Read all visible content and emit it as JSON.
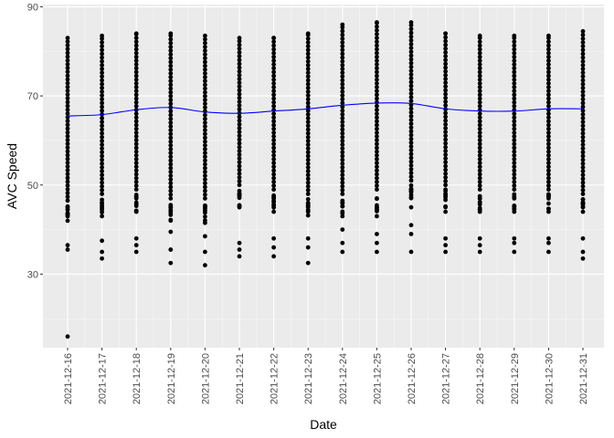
{
  "chart_data": {
    "type": "scatter",
    "title": "",
    "xlabel": "Date",
    "ylabel": "AVC Speed",
    "ylim": [
      13.5,
      90.5
    ],
    "yticks": [
      30,
      50,
      70,
      90
    ],
    "grid": true,
    "legend": "none",
    "categories": [
      "2021-12-16",
      "2021-12-17",
      "2021-12-18",
      "2021-12-19",
      "2021-12-20",
      "2021-12-21",
      "2021-12-22",
      "2021-12-23",
      "2021-12-24",
      "2021-12-25",
      "2021-12-26",
      "2021-12-27",
      "2021-12-28",
      "2021-12-29",
      "2021-12-30",
      "2021-12-31"
    ],
    "point_color": "#000000",
    "points_per_day": [
      {
        "date": "2021-12-16",
        "min": 16,
        "max": 83,
        "outliers": [
          16,
          35.5,
          36.5,
          43,
          44.5
        ]
      },
      {
        "date": "2021-12-17",
        "min": 33.5,
        "max": 83.5,
        "outliers": [
          33.5,
          35,
          37.5,
          43,
          46
        ]
      },
      {
        "date": "2021-12-18",
        "min": 35,
        "max": 84,
        "outliers": [
          35,
          36.5,
          38,
          44,
          47
        ]
      },
      {
        "date": "2021-12-19",
        "min": 32.5,
        "max": 84,
        "outliers": [
          32.5,
          35.5,
          39.5,
          42,
          45
        ]
      },
      {
        "date": "2021-12-20",
        "min": 32,
        "max": 83.5,
        "outliers": [
          32,
          35,
          38.5,
          41.5,
          45
        ]
      },
      {
        "date": "2021-12-21",
        "min": 34,
        "max": 83,
        "outliers": [
          34,
          35.5,
          37,
          45,
          48
        ]
      },
      {
        "date": "2021-12-22",
        "min": 34,
        "max": 83,
        "outliers": [
          34,
          36,
          38,
          44,
          47
        ]
      },
      {
        "date": "2021-12-23",
        "min": 32.5,
        "max": 84,
        "outliers": [
          32.5,
          36,
          38,
          44,
          46
        ]
      },
      {
        "date": "2021-12-24",
        "min": 35,
        "max": 86,
        "outliers": [
          35,
          37,
          40,
          43,
          46
        ]
      },
      {
        "date": "2021-12-25",
        "min": 35,
        "max": 86.5,
        "outliers": [
          35,
          37,
          39,
          43,
          47
        ]
      },
      {
        "date": "2021-12-26",
        "min": 35,
        "max": 86.5,
        "outliers": [
          35,
          39,
          41,
          45,
          49
        ]
      },
      {
        "date": "2021-12-27",
        "min": 35,
        "max": 84,
        "outliers": [
          35,
          36.5,
          38,
          44,
          48
        ]
      },
      {
        "date": "2021-12-28",
        "min": 35,
        "max": 83.5,
        "outliers": [
          35,
          36.5,
          38,
          44,
          47
        ]
      },
      {
        "date": "2021-12-29",
        "min": 35,
        "max": 83.5,
        "outliers": [
          35,
          37,
          38,
          44,
          47
        ]
      },
      {
        "date": "2021-12-30",
        "min": 35,
        "max": 83.5,
        "outliers": [
          35,
          37,
          38,
          44,
          47
        ]
      },
      {
        "date": "2021-12-31",
        "min": 33.5,
        "max": 84.5,
        "outliers": [
          33.5,
          35,
          38,
          44,
          46
        ]
      }
    ],
    "series": [
      {
        "type": "smooth-line",
        "color": "#0000ff",
        "values": [
          65.5,
          65.8,
          66.9,
          67.4,
          66.4,
          66.1,
          66.6,
          67.1,
          67.9,
          68.4,
          68.3,
          67.1,
          66.6,
          66.6,
          67.1,
          67.1
        ]
      }
    ],
    "colors": {
      "panel": "#ebebeb",
      "grid_major": "#ffffff",
      "line": "#0000ff",
      "points": "#000000"
    }
  }
}
